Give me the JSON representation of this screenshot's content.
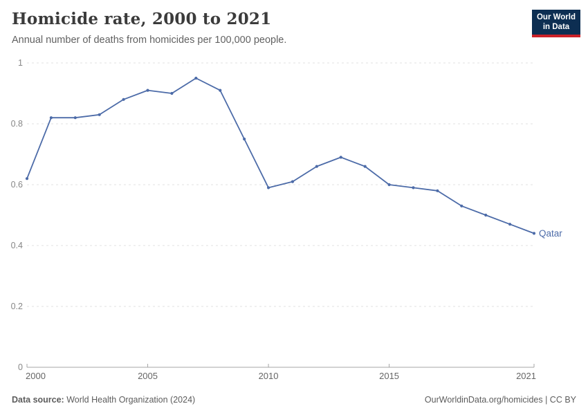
{
  "header": {
    "title": "Homicide rate, 2000 to 2021",
    "subtitle": "Annual number of deaths from homicides per 100,000 people."
  },
  "logo": {
    "line1": "Our World",
    "line2": "in Data"
  },
  "footer": {
    "source_label": "Data source:",
    "source_text": " World Health Organization (2024)",
    "right_text": "OurWorldinData.org/homicides | CC BY"
  },
  "colors": {
    "line": "#4C6BA8",
    "entity_label": "#4C6BA8",
    "logo_navy": "#0d2e52",
    "logo_red": "#cb2128",
    "grid": "#e0e0e0",
    "axis": "#a5a5a5"
  },
  "chart_data": {
    "type": "line",
    "title": "Homicide rate, 2000 to 2021",
    "subtitle": "Annual number of deaths from homicides per 100,000 people.",
    "xlabel": "",
    "ylabel": "",
    "xlim": [
      2000,
      2021
    ],
    "ylim": [
      0,
      1
    ],
    "grid": "horizontal-dashed",
    "legend_position": "end-of-line-label",
    "x_ticks": [
      2000,
      2005,
      2010,
      2015,
      2021
    ],
    "y_ticks": [
      0,
      0.2,
      0.4,
      0.6,
      0.8,
      1
    ],
    "series": [
      {
        "name": "Qatar",
        "color": "#4C6BA8",
        "x": [
          2000,
          2001,
          2002,
          2003,
          2004,
          2005,
          2006,
          2007,
          2008,
          2009,
          2010,
          2011,
          2012,
          2013,
          2014,
          2015,
          2016,
          2017,
          2018,
          2019,
          2020,
          2021
        ],
        "values": [
          0.62,
          0.82,
          0.82,
          0.83,
          0.88,
          0.91,
          0.9,
          0.95,
          0.91,
          0.75,
          0.59,
          0.61,
          0.66,
          0.69,
          0.66,
          0.6,
          0.59,
          0.58,
          0.53,
          0.5,
          0.47,
          0.44
        ]
      }
    ]
  }
}
